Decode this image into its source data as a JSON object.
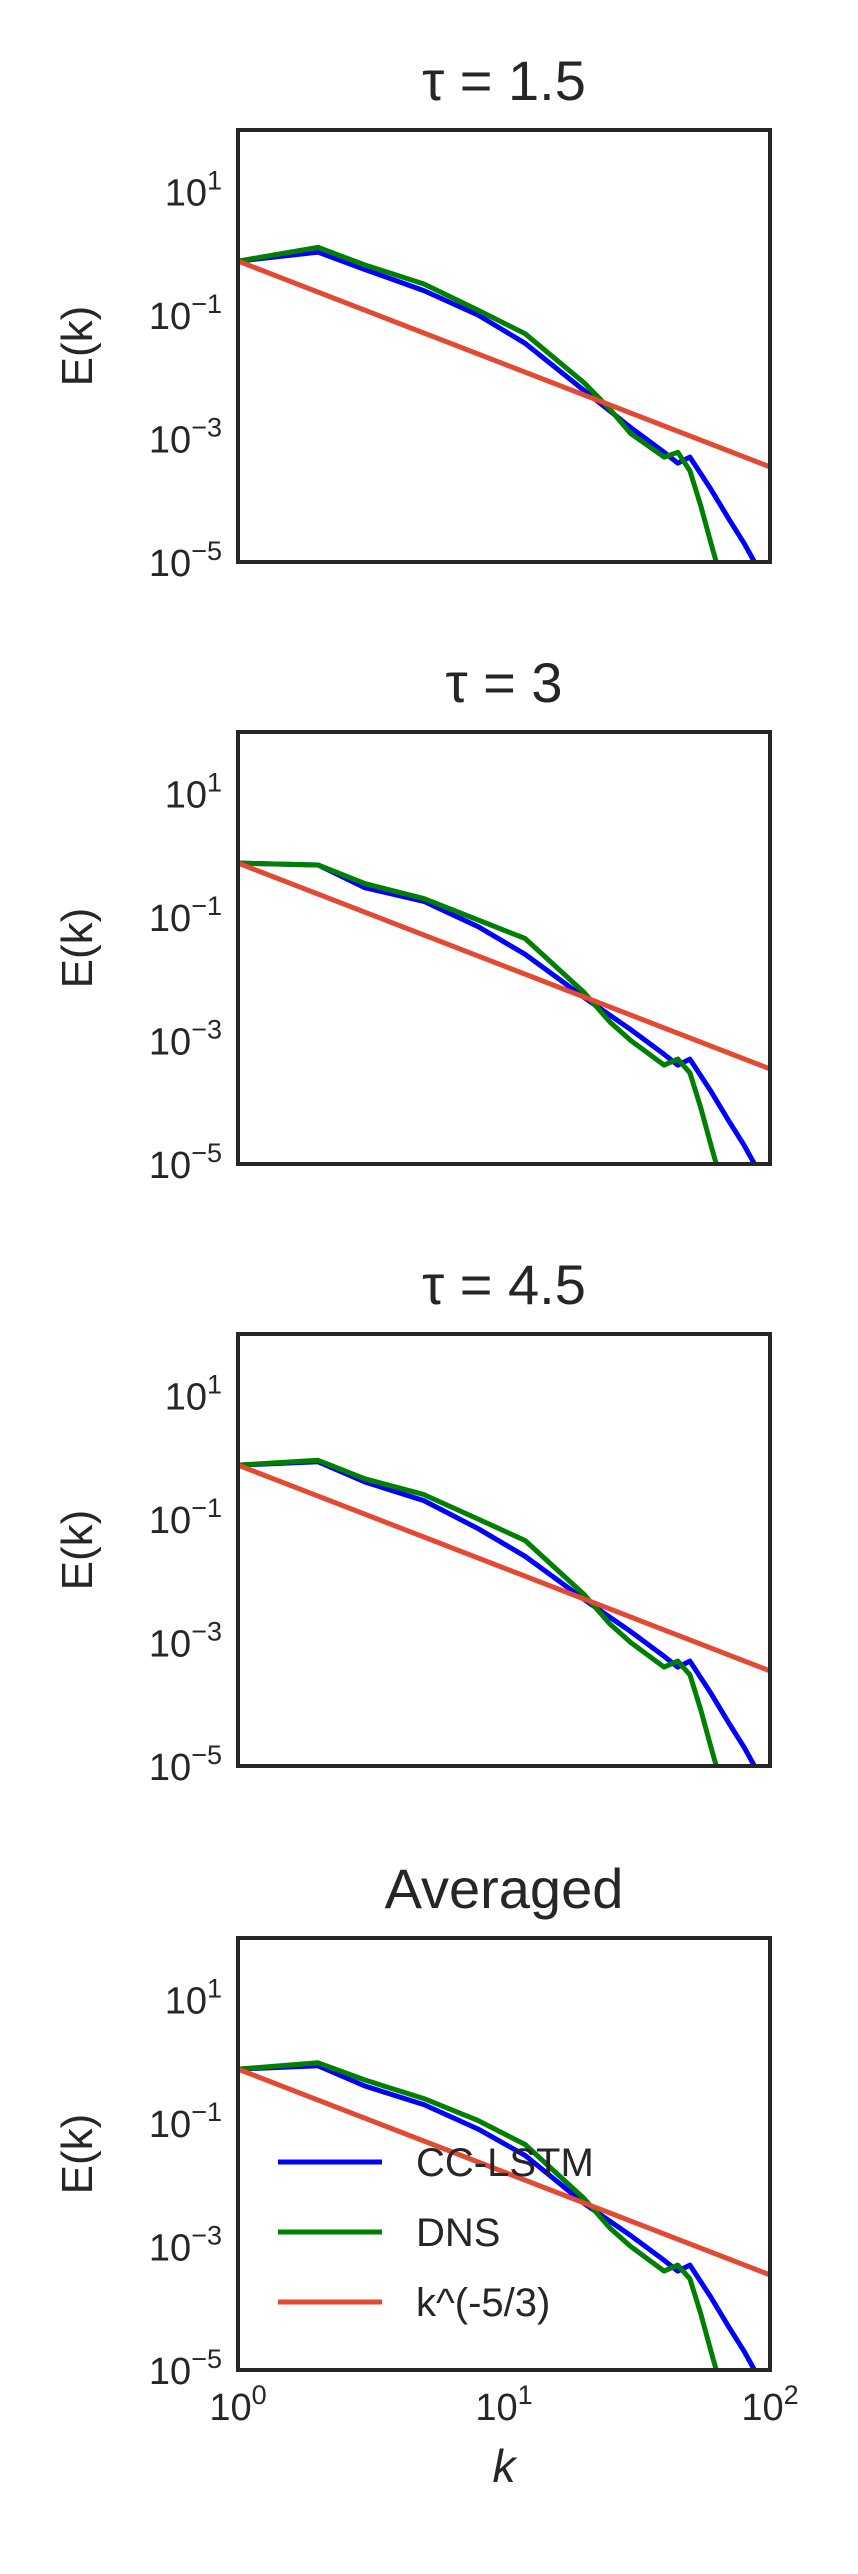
{
  "chart_data": [
    {
      "type": "line",
      "title": "τ = 1.5",
      "xlabel": "",
      "ylabel": "E(k)",
      "xscale": "log",
      "yscale": "log",
      "xlim": [
        1,
        100
      ],
      "ylim": [
        1e-05,
        100
      ],
      "grid": false,
      "yticks": [
        10,
        0.1,
        0.001,
        1e-05
      ],
      "ytick_labels": [
        {
          "base": "10",
          "exp": "1"
        },
        {
          "base": "10",
          "exp": "−1"
        },
        {
          "base": "10",
          "exp": "−3"
        },
        {
          "base": "10",
          "exp": "−5"
        }
      ],
      "series": [
        {
          "name": "CC-LSTM",
          "color": "#0000ff",
          "points": [
            [
              1,
              0.75
            ],
            [
              2,
              1.05
            ],
            [
              3,
              0.55
            ],
            [
              5,
              0.25
            ],
            [
              8,
              0.1
            ],
            [
              12,
              0.035
            ],
            [
              20,
              0.006
            ],
            [
              30,
              0.0015
            ],
            [
              40,
              0.0006
            ],
            [
              45,
              0.0004
            ],
            [
              50,
              0.0005
            ],
            [
              60,
              0.00015
            ],
            [
              70,
              5e-05
            ],
            [
              80,
              2e-05
            ],
            [
              90,
              8e-06
            ]
          ]
        },
        {
          "name": "DNS",
          "color": "#008000",
          "points": [
            [
              1,
              0.75
            ],
            [
              2,
              1.25
            ],
            [
              3,
              0.65
            ],
            [
              5,
              0.32
            ],
            [
              8,
              0.12
            ],
            [
              12,
              0.05
            ],
            [
              20,
              0.008
            ],
            [
              25,
              0.003
            ],
            [
              30,
              0.0012
            ],
            [
              40,
              0.0005
            ],
            [
              45,
              0.0006
            ],
            [
              50,
              0.0003
            ],
            [
              55,
              8e-05
            ],
            [
              60,
              2e-05
            ],
            [
              65,
              6e-06
            ]
          ]
        },
        {
          "name": "k^(-5/3)",
          "color": "#e24a33",
          "points": [
            [
              1,
              0.75
            ],
            [
              100,
              0.000348
            ]
          ]
        }
      ]
    },
    {
      "type": "line",
      "title": "τ = 3",
      "xlabel": "",
      "ylabel": "E(k)",
      "xscale": "log",
      "yscale": "log",
      "xlim": [
        1,
        100
      ],
      "ylim": [
        1e-05,
        100
      ],
      "grid": false,
      "yticks": [
        10,
        0.1,
        0.001,
        1e-05
      ],
      "ytick_labels": [
        {
          "base": "10",
          "exp": "1"
        },
        {
          "base": "10",
          "exp": "−1"
        },
        {
          "base": "10",
          "exp": "−3"
        },
        {
          "base": "10",
          "exp": "−5"
        }
      ],
      "series": [
        {
          "name": "CC-LSTM",
          "color": "#0000ff",
          "points": [
            [
              1,
              0.75
            ],
            [
              2,
              0.7
            ],
            [
              3,
              0.3
            ],
            [
              5,
              0.18
            ],
            [
              8,
              0.07
            ],
            [
              12,
              0.025
            ],
            [
              20,
              0.005
            ],
            [
              30,
              0.0015
            ],
            [
              40,
              0.0006
            ],
            [
              45,
              0.0004
            ],
            [
              50,
              0.0005
            ],
            [
              60,
              0.00015
            ],
            [
              70,
              5e-05
            ],
            [
              80,
              2e-05
            ],
            [
              90,
              8e-06
            ]
          ]
        },
        {
          "name": "DNS",
          "color": "#008000",
          "points": [
            [
              1,
              0.75
            ],
            [
              2,
              0.7
            ],
            [
              3,
              0.35
            ],
            [
              5,
              0.2
            ],
            [
              8,
              0.09
            ],
            [
              12,
              0.045
            ],
            [
              20,
              0.006
            ],
            [
              25,
              0.002
            ],
            [
              30,
              0.001
            ],
            [
              40,
              0.0004
            ],
            [
              45,
              0.0005
            ],
            [
              50,
              0.0003
            ],
            [
              55,
              8e-05
            ],
            [
              60,
              2e-05
            ],
            [
              65,
              6e-06
            ]
          ]
        },
        {
          "name": "k^(-5/3)",
          "color": "#e24a33",
          "points": [
            [
              1,
              0.75
            ],
            [
              100,
              0.000348
            ]
          ]
        }
      ]
    },
    {
      "type": "line",
      "title": "τ = 4.5",
      "xlabel": "",
      "ylabel": "E(k)",
      "xscale": "log",
      "yscale": "log",
      "xlim": [
        1,
        100
      ],
      "ylim": [
        1e-05,
        100
      ],
      "grid": false,
      "yticks": [
        10,
        0.1,
        0.001,
        1e-05
      ],
      "ytick_labels": [
        {
          "base": "10",
          "exp": "1"
        },
        {
          "base": "10",
          "exp": "−1"
        },
        {
          "base": "10",
          "exp": "−3"
        },
        {
          "base": "10",
          "exp": "−5"
        }
      ],
      "series": [
        {
          "name": "CC-LSTM",
          "color": "#0000ff",
          "points": [
            [
              1,
              0.75
            ],
            [
              2,
              0.85
            ],
            [
              3,
              0.4
            ],
            [
              5,
              0.2
            ],
            [
              8,
              0.07
            ],
            [
              12,
              0.025
            ],
            [
              20,
              0.005
            ],
            [
              30,
              0.0015
            ],
            [
              40,
              0.0006
            ],
            [
              45,
              0.0004
            ],
            [
              50,
              0.0005
            ],
            [
              60,
              0.00015
            ],
            [
              70,
              5e-05
            ],
            [
              80,
              2e-05
            ],
            [
              90,
              8e-06
            ]
          ]
        },
        {
          "name": "DNS",
          "color": "#008000",
          "points": [
            [
              1,
              0.75
            ],
            [
              2,
              0.9
            ],
            [
              3,
              0.45
            ],
            [
              5,
              0.25
            ],
            [
              8,
              0.1
            ],
            [
              12,
              0.045
            ],
            [
              20,
              0.006
            ],
            [
              25,
              0.002
            ],
            [
              30,
              0.001
            ],
            [
              40,
              0.0004
            ],
            [
              45,
              0.0005
            ],
            [
              50,
              0.0003
            ],
            [
              55,
              8e-05
            ],
            [
              60,
              2e-05
            ],
            [
              65,
              6e-06
            ]
          ]
        },
        {
          "name": "k^(-5/3)",
          "color": "#e24a33",
          "points": [
            [
              1,
              0.75
            ],
            [
              100,
              0.000348
            ]
          ]
        }
      ]
    },
    {
      "type": "line",
      "title": "Averaged",
      "xlabel": "k",
      "ylabel": "E(k)",
      "xscale": "log",
      "yscale": "log",
      "xlim": [
        1,
        100
      ],
      "ylim": [
        1e-05,
        100
      ],
      "grid": false,
      "xticks": [
        1,
        10,
        100
      ],
      "xtick_labels": [
        {
          "base": "10",
          "exp": "0"
        },
        {
          "base": "10",
          "exp": "1"
        },
        {
          "base": "10",
          "exp": "2"
        }
      ],
      "yticks": [
        10,
        0.1,
        0.001,
        1e-05
      ],
      "ytick_labels": [
        {
          "base": "10",
          "exp": "1"
        },
        {
          "base": "10",
          "exp": "−1"
        },
        {
          "base": "10",
          "exp": "−3"
        },
        {
          "base": "10",
          "exp": "−5"
        }
      ],
      "legend": {
        "placement": "lower-left",
        "entries": [
          "CC-LSTM",
          "DNS",
          "k^(-5/3)"
        ]
      },
      "series": [
        {
          "name": "CC-LSTM",
          "color": "#0000ff",
          "points": [
            [
              1,
              0.75
            ],
            [
              2,
              0.85
            ],
            [
              3,
              0.4
            ],
            [
              5,
              0.2
            ],
            [
              8,
              0.08
            ],
            [
              12,
              0.03
            ],
            [
              20,
              0.005
            ],
            [
              30,
              0.0015
            ],
            [
              40,
              0.0006
            ],
            [
              45,
              0.0004
            ],
            [
              50,
              0.0005
            ],
            [
              60,
              0.00015
            ],
            [
              70,
              5e-05
            ],
            [
              80,
              2e-05
            ],
            [
              90,
              8e-06
            ]
          ]
        },
        {
          "name": "DNS",
          "color": "#008000",
          "points": [
            [
              1,
              0.75
            ],
            [
              2,
              0.95
            ],
            [
              3,
              0.5
            ],
            [
              5,
              0.25
            ],
            [
              8,
              0.11
            ],
            [
              12,
              0.045
            ],
            [
              20,
              0.006
            ],
            [
              25,
              0.002
            ],
            [
              30,
              0.001
            ],
            [
              40,
              0.0004
            ],
            [
              45,
              0.0005
            ],
            [
              50,
              0.0003
            ],
            [
              55,
              8e-05
            ],
            [
              60,
              2e-05
            ],
            [
              65,
              6e-06
            ]
          ]
        },
        {
          "name": "k^(-5/3)",
          "color": "#e24a33",
          "points": [
            [
              1,
              0.75
            ],
            [
              100,
              0.000348
            ]
          ]
        }
      ]
    }
  ]
}
